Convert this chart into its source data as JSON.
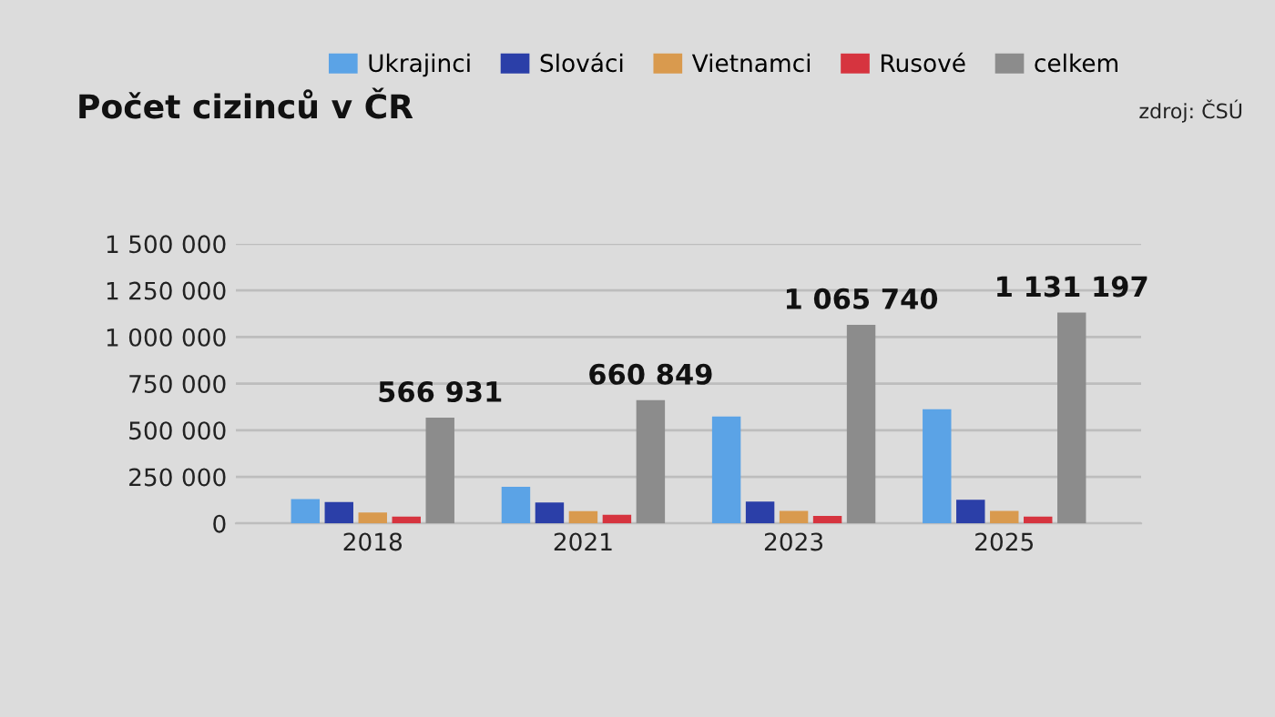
{
  "chart_data": {
    "type": "bar",
    "title": "Počet cizinců v ČR",
    "annotations": [
      "zdroj: ČSÚ"
    ],
    "categories": [
      "2018",
      "2021",
      "2023",
      "2025"
    ],
    "series": [
      {
        "name": "Ukrajinci",
        "color": "#5ba3e6",
        "values": [
          131000,
          197000,
          573000,
          613000
        ]
      },
      {
        "name": "Slováci",
        "color": "#2b3fa8",
        "values": [
          115000,
          112000,
          117000,
          127000
        ]
      },
      {
        "name": "Vietnamci",
        "color": "#d99a4e",
        "values": [
          59000,
          66000,
          67000,
          67000
        ]
      },
      {
        "name": "Rusové",
        "color": "#d6343f",
        "values": [
          36000,
          46000,
          40000,
          37000
        ]
      },
      {
        "name": "celkem",
        "color": "#8c8c8c",
        "values": [
          566931,
          660849,
          1065740,
          1131197
        ],
        "value_labels": [
          "566 931",
          "660 849",
          "1 065 740",
          "1 131 197"
        ]
      }
    ],
    "ylim": [
      0,
      1500000
    ],
    "yticks": [
      0,
      {
        "value": 250000,
        "label": "250 000"
      },
      {
        "value": 500000,
        "label": "500 000"
      },
      {
        "value": 750000,
        "label": "750 000"
      },
      {
        "value": 1000000,
        "label": "1 000 000"
      },
      {
        "value": 1250000,
        "label": "1 250 000"
      },
      {
        "value": 1500000,
        "label": "1 500 000"
      }
    ],
    "grid": "y",
    "legend": "top right"
  }
}
